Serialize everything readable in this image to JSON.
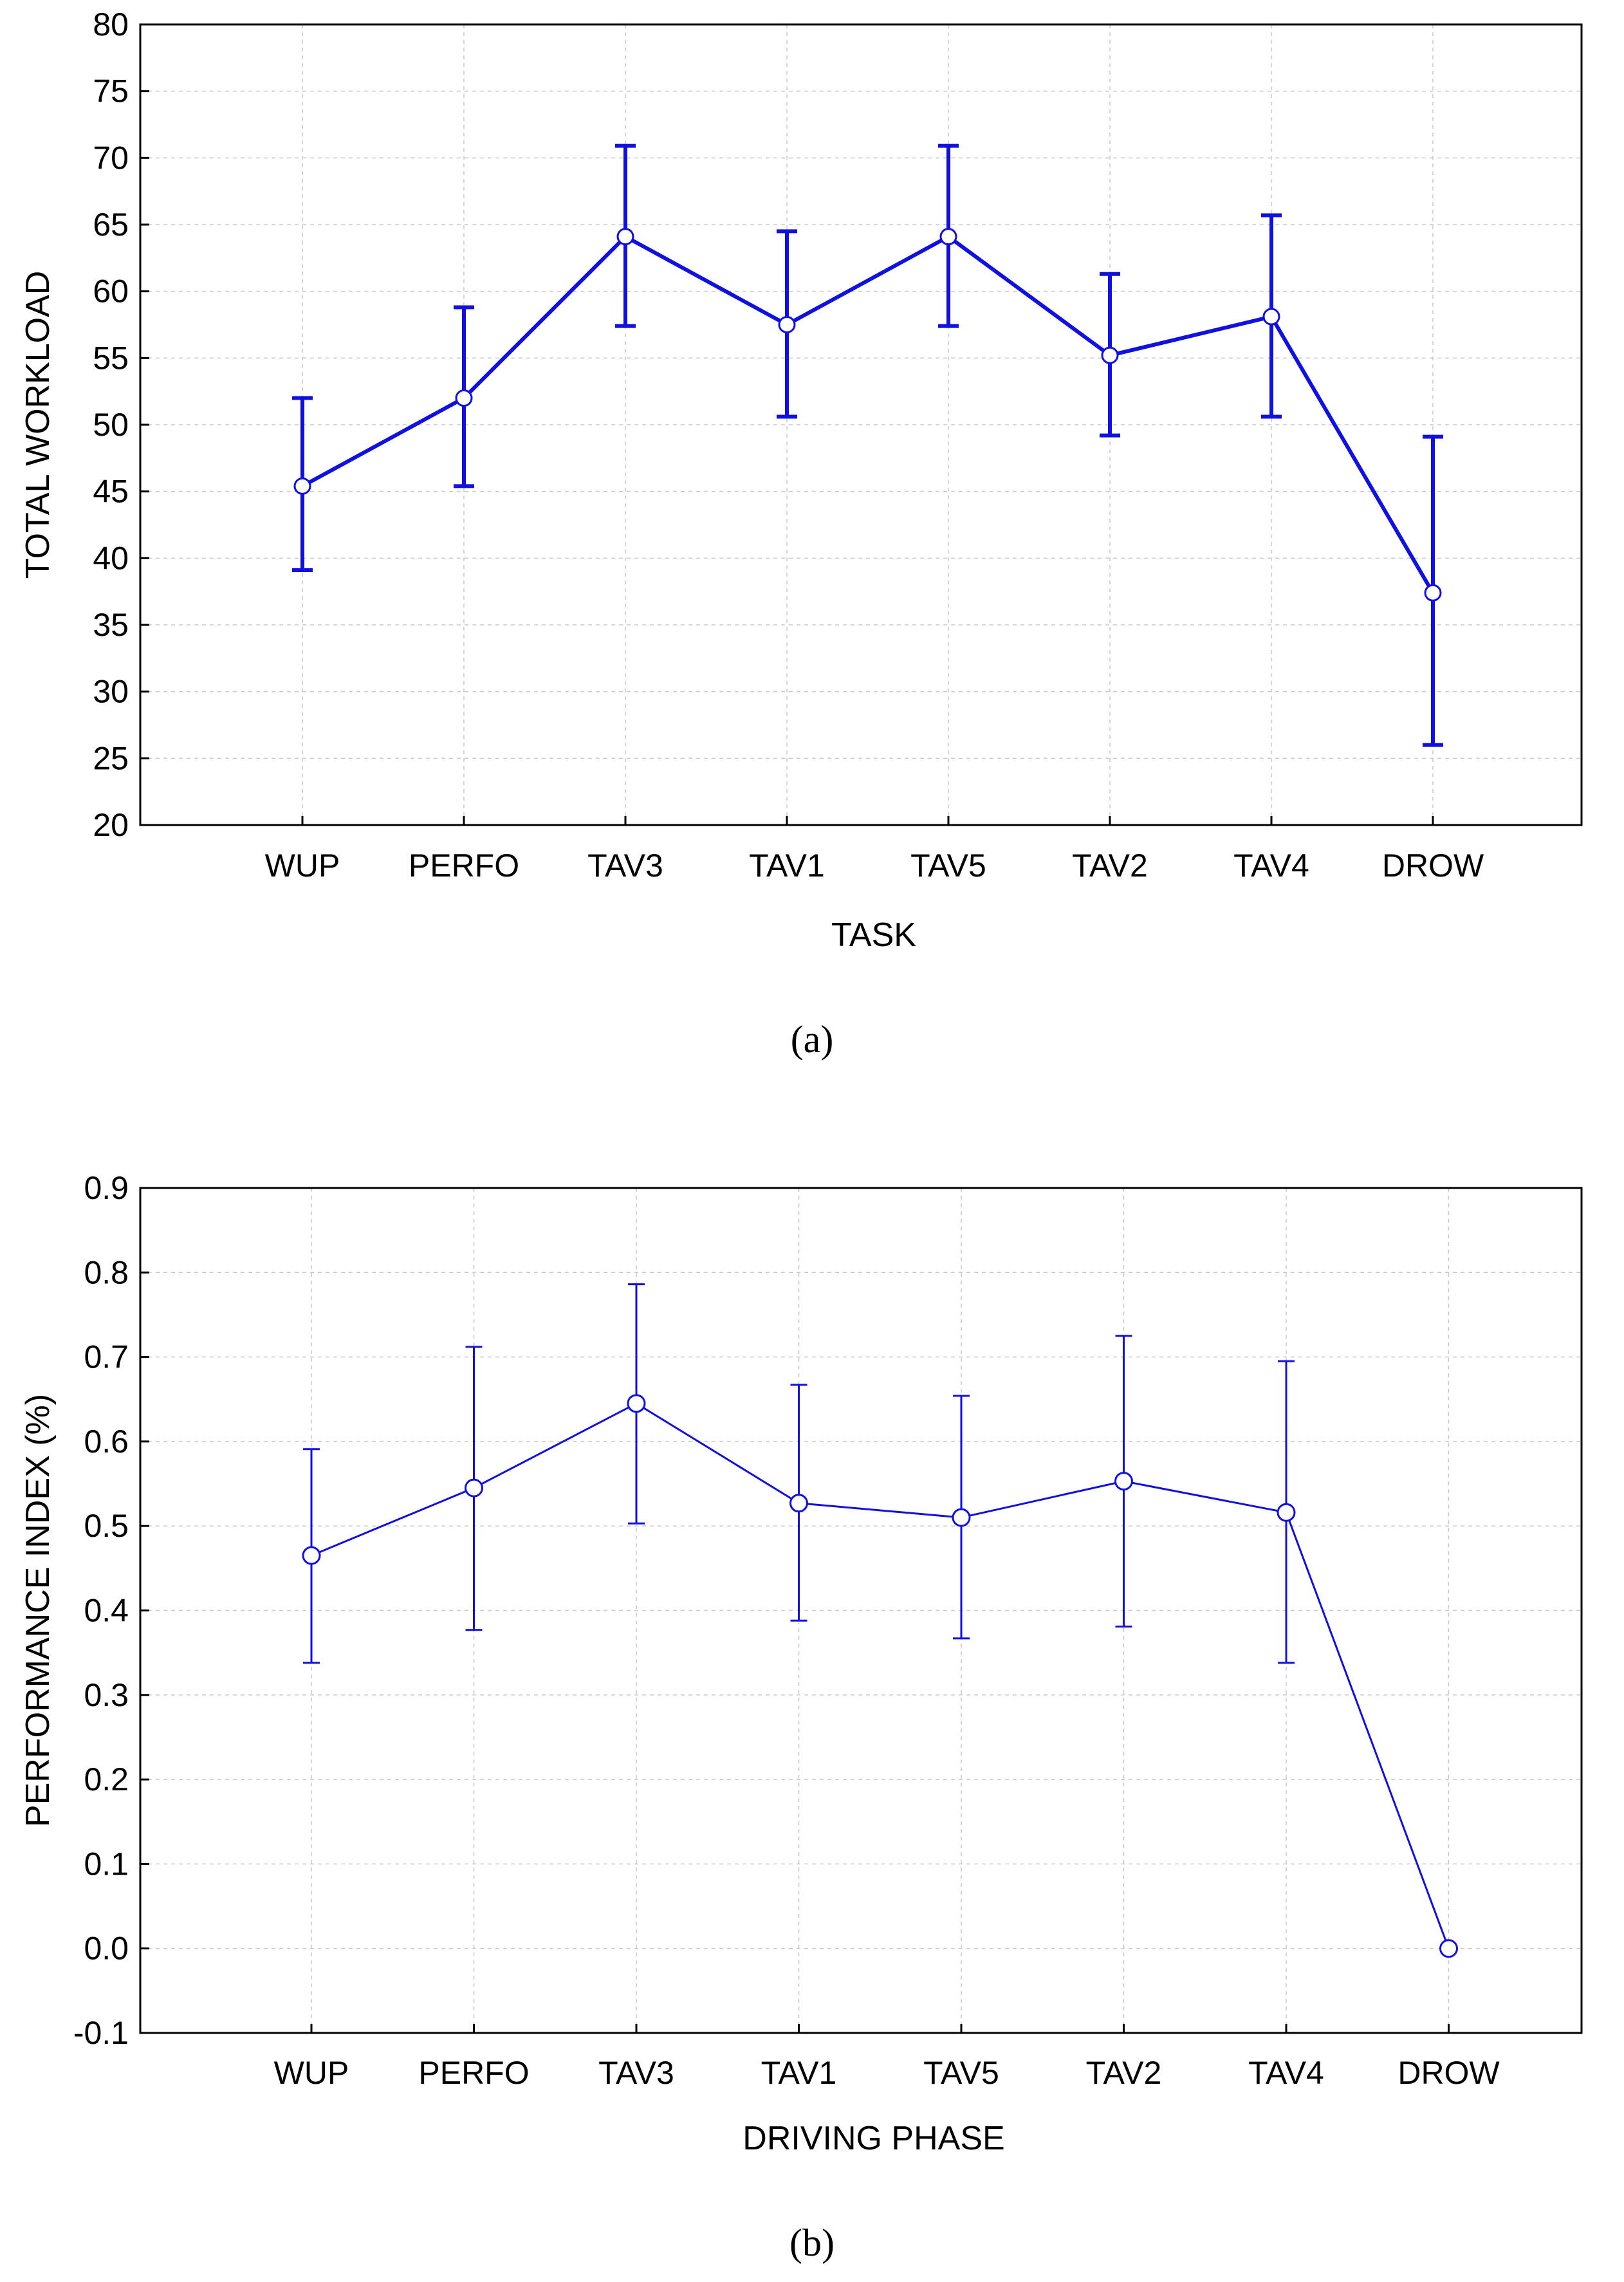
{
  "chart_data": [
    {
      "id": "a",
      "type": "line",
      "caption": "(a)",
      "xlabel": "TASK",
      "ylabel": "TOTAL WORKLOAD",
      "ylim": [
        20,
        80
      ],
      "yticks": [
        "20",
        "25",
        "30",
        "35",
        "40",
        "45",
        "50",
        "55",
        "60",
        "65",
        "70",
        "75",
        "80"
      ],
      "categories": [
        "WUP",
        "PERFO",
        "TAV3",
        "TAV1",
        "TAV5",
        "TAV2",
        "TAV4",
        "DROW"
      ],
      "grid": true,
      "series": [
        {
          "name": "Total workload",
          "values": [
            45.4,
            52.0,
            64.1,
            57.5,
            64.1,
            55.2,
            58.1,
            37.4
          ],
          "error_low": [
            39.1,
            45.4,
            57.4,
            50.6,
            57.4,
            49.2,
            50.6,
            26.0
          ],
          "error_high": [
            52.0,
            58.8,
            70.9,
            64.5,
            70.9,
            61.3,
            65.7,
            49.1
          ]
        }
      ],
      "color": "#1010e0"
    },
    {
      "id": "b",
      "type": "line",
      "caption": "(b)",
      "xlabel": "DRIVING PHASE",
      "ylabel": "PERFORMANCE INDEX (%)",
      "ylim": [
        -0.1,
        0.9
      ],
      "yticks": [
        "-0.1",
        "0.0",
        "0.1",
        "0.2",
        "0.3",
        "0.4",
        "0.5",
        "0.6",
        "0.7",
        "0.8",
        "0.9"
      ],
      "categories": [
        "WUP",
        "PERFO",
        "TAV3",
        "TAV1",
        "TAV5",
        "TAV2",
        "TAV4",
        "DROW"
      ],
      "grid": true,
      "series": [
        {
          "name": "Performance index",
          "values": [
            0.465,
            0.545,
            0.645,
            0.527,
            0.51,
            0.553,
            0.516,
            0.0
          ],
          "error_low": [
            0.338,
            0.377,
            0.503,
            0.388,
            0.367,
            0.381,
            0.338,
            null
          ],
          "error_high": [
            0.591,
            0.712,
            0.786,
            0.667,
            0.654,
            0.725,
            0.695,
            null
          ]
        }
      ],
      "color": "#1010e0"
    }
  ]
}
